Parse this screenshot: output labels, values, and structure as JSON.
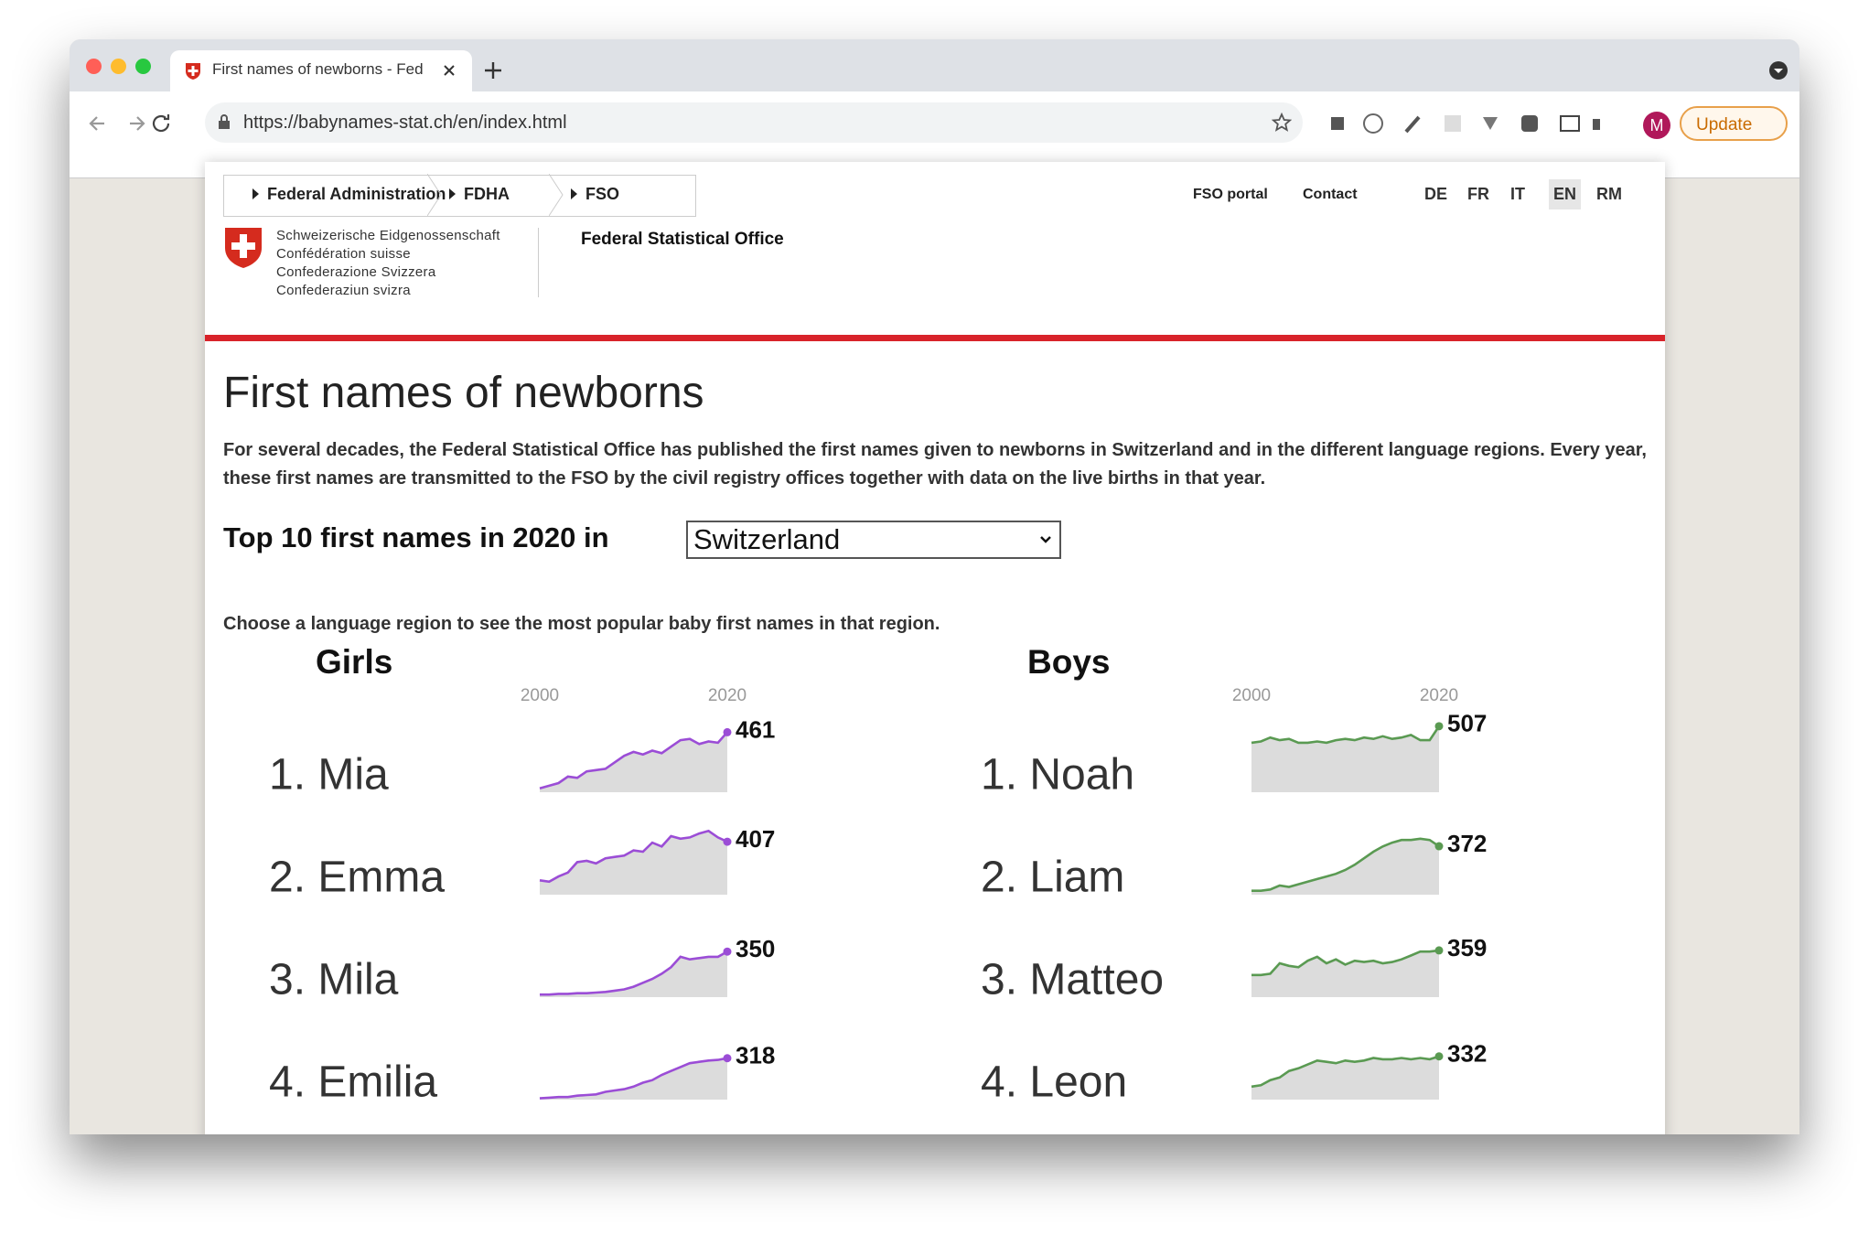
{
  "browser": {
    "tab_title": "First names of newborns - Fed",
    "url": "https://babynames-stat.ch/en/index.html",
    "update_button": "Update",
    "avatar": "M"
  },
  "header": {
    "breadcrumb": [
      "Federal Administration",
      "FDHA",
      "FSO"
    ],
    "links": [
      "FSO portal",
      "Contact"
    ],
    "languages": [
      {
        "label": "DE"
      },
      {
        "label": "FR"
      },
      {
        "label": "IT"
      },
      {
        "label": "EN",
        "active": true
      },
      {
        "label": "RM"
      }
    ],
    "logo_lines": [
      "Schweizerische Eidgenossenschaft",
      "Confédération suisse",
      "Confederazione Svizzera",
      "Confederaziun svizra"
    ],
    "office": "Federal Statistical Office"
  },
  "content": {
    "title": "First names of newborns",
    "intro": "For several decades, the Federal Statistical Office has published the first names given to newborns in Switzerland and in the different language regions. Every year, these first names are transmitted to the FSO by the civil registry offices together with data on the live births in that year.",
    "top10_label": "Top 10 first names in 2020 in",
    "region": "Switzerland",
    "hint": "Choose a language region to see the most popular baby first names in that region."
  },
  "chart_data": [
    {
      "type": "sparkline",
      "title": "Girls",
      "x": [
        2000,
        2001,
        2002,
        2003,
        2004,
        2005,
        2006,
        2007,
        2008,
        2009,
        2010,
        2011,
        2012,
        2013,
        2014,
        2015,
        2016,
        2017,
        2018,
        2019,
        2020
      ],
      "xticks": [
        2000,
        2020
      ],
      "xlim": [
        2000,
        2020
      ],
      "ylim": [
        0,
        520
      ],
      "series": [
        {
          "name": "1. Mia",
          "color": "#9b4dd6",
          "values": [
            30,
            50,
            70,
            120,
            110,
            160,
            170,
            180,
            230,
            280,
            310,
            290,
            320,
            300,
            350,
            400,
            410,
            370,
            390,
            380,
            461
          ]
        },
        {
          "name": "2. Emma",
          "color": "#9b4dd6",
          "values": [
            110,
            100,
            140,
            170,
            250,
            260,
            240,
            280,
            290,
            300,
            340,
            330,
            400,
            370,
            450,
            430,
            440,
            470,
            490,
            440,
            407
          ]
        },
        {
          "name": "3. Mila",
          "color": "#9b4dd6",
          "values": [
            20,
            20,
            25,
            25,
            30,
            30,
            35,
            40,
            50,
            60,
            80,
            110,
            140,
            180,
            230,
            310,
            290,
            300,
            310,
            310,
            350
          ]
        },
        {
          "name": "4. Emilia",
          "color": "#9b4dd6",
          "values": [
            10,
            15,
            20,
            20,
            30,
            35,
            40,
            60,
            70,
            80,
            100,
            130,
            150,
            190,
            220,
            250,
            280,
            290,
            300,
            305,
            318
          ]
        }
      ]
    },
    {
      "type": "sparkline",
      "title": "Boys",
      "x": [
        2000,
        2001,
        2002,
        2003,
        2004,
        2005,
        2006,
        2007,
        2008,
        2009,
        2010,
        2011,
        2012,
        2013,
        2014,
        2015,
        2016,
        2017,
        2018,
        2019,
        2020
      ],
      "xticks": [
        2000,
        2020
      ],
      "xlim": [
        2000,
        2020
      ],
      "ylim": [
        0,
        520
      ],
      "series": [
        {
          "name": "1. Noah",
          "color": "#5a9a52",
          "values": [
            380,
            390,
            420,
            400,
            410,
            380,
            380,
            390,
            380,
            400,
            410,
            400,
            420,
            410,
            430,
            410,
            420,
            440,
            400,
            400,
            507
          ]
        },
        {
          "name": "2. Liam",
          "color": "#5a9a52",
          "values": [
            30,
            30,
            40,
            70,
            60,
            80,
            100,
            120,
            140,
            160,
            190,
            230,
            280,
            330,
            370,
            400,
            420,
            420,
            430,
            420,
            372
          ]
        },
        {
          "name": "3. Matteo",
          "color": "#5a9a52",
          "values": [
            170,
            170,
            180,
            260,
            240,
            230,
            280,
            310,
            260,
            290,
            250,
            280,
            270,
            280,
            260,
            270,
            290,
            320,
            350,
            350,
            359
          ]
        },
        {
          "name": "4. Leon",
          "color": "#5a9a52",
          "values": [
            100,
            110,
            150,
            170,
            220,
            240,
            270,
            300,
            290,
            280,
            300,
            290,
            300,
            320,
            310,
            310,
            320,
            310,
            320,
            310,
            332
          ]
        }
      ]
    }
  ]
}
